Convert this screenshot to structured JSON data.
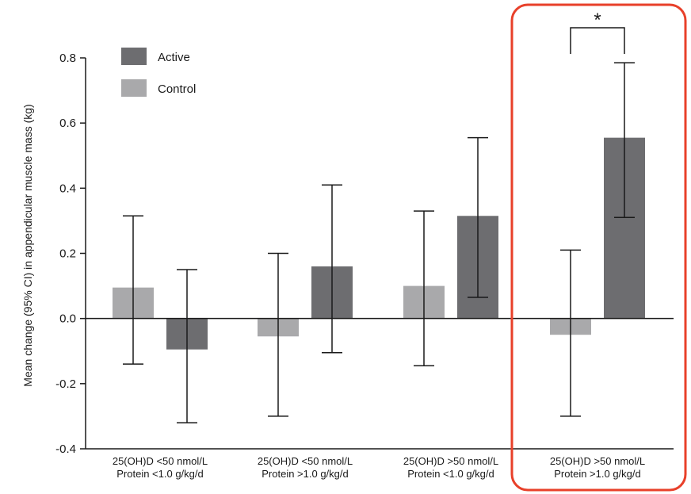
{
  "chart_data": {
    "type": "bar",
    "ylabel": "Mean change (95% CI) in appendicular muscle mass (kg)",
    "xlabel": "",
    "ylim": [
      -0.4,
      0.8
    ],
    "yticks": [
      0.8,
      0.6,
      0.4,
      0.2,
      0.0,
      -0.2,
      -0.4
    ],
    "ytick_labels": [
      "0.8",
      "0.6",
      "0.4",
      "0.2",
      "0.0",
      "-0.2",
      "-0.4"
    ],
    "categories": [
      {
        "line1": "25(OH)D <50 nmol/L",
        "line2": "Protein <1.0 g/kg/d"
      },
      {
        "line1": "25(OH)D <50 nmol/L",
        "line2": "Protein >1.0 g/kg/d"
      },
      {
        "line1": "25(OH)D >50 nmol/L",
        "line2": "Protein <1.0 g/kg/d"
      },
      {
        "line1": "25(OH)D >50 nmol/L",
        "line2": "Protein >1.0 g/kg/d"
      }
    ],
    "series": [
      {
        "name": "Control",
        "color": "#a9a9ab",
        "values": [
          0.095,
          -0.055,
          0.1,
          -0.05
        ],
        "ci_low": [
          -0.14,
          -0.3,
          -0.145,
          -0.3
        ],
        "ci_high": [
          0.315,
          0.2,
          0.33,
          0.21
        ]
      },
      {
        "name": "Active",
        "color": "#6d6d70",
        "values": [
          -0.095,
          0.16,
          0.315,
          0.555
        ],
        "ci_low": [
          -0.32,
          -0.105,
          0.065,
          0.31
        ],
        "ci_high": [
          0.15,
          0.41,
          0.555,
          0.785
        ]
      }
    ],
    "legend": {
      "position": "top-left",
      "order": [
        "Active",
        "Control"
      ]
    },
    "annotations": [
      {
        "text": "*",
        "category_index": 3
      }
    ],
    "highlight": {
      "category_index": 3,
      "color": "#e8402a"
    },
    "grid": false
  }
}
